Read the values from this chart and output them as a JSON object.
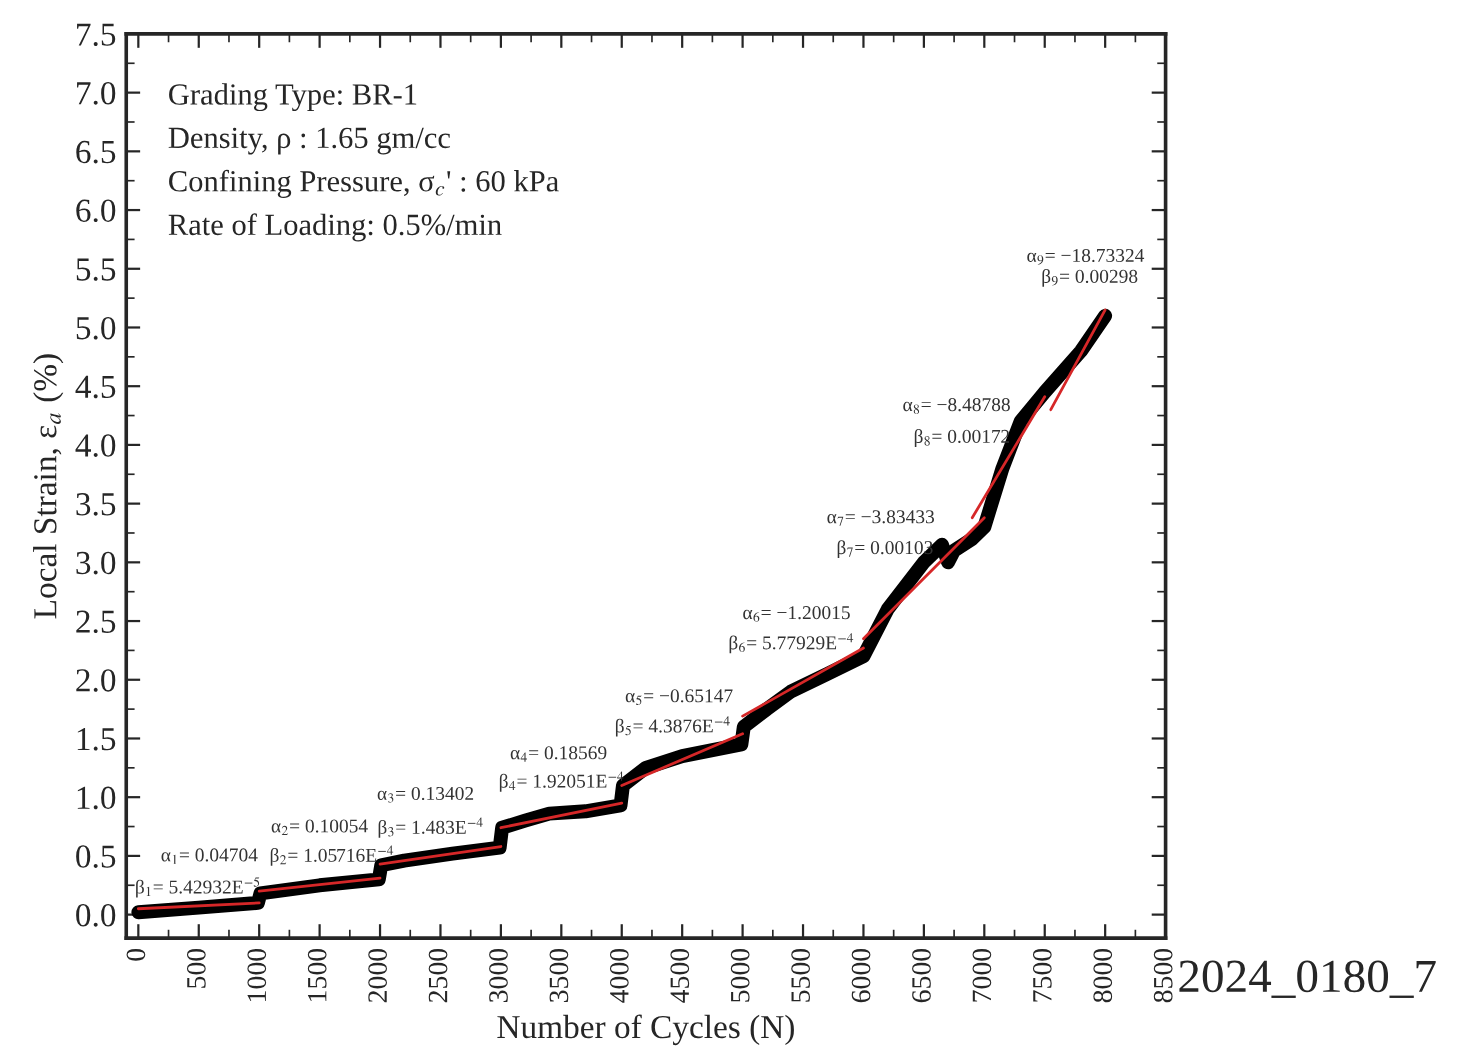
{
  "chart_data": {
    "type": "line",
    "xlabel": "Number of Cycles (N)",
    "ylabel": "Local Strain, ε$_{a}$ (%)",
    "xlim": [
      -100,
      8500
    ],
    "ylim": [
      -0.2,
      7.5
    ],
    "xticks": [
      0,
      500,
      1000,
      1500,
      2000,
      2500,
      3000,
      3500,
      4000,
      4500,
      5000,
      5500,
      6000,
      6500,
      7000,
      7500,
      8000,
      8500
    ],
    "yticks": [
      {
        "value": 0,
        "label": "0.0"
      },
      {
        "value": 0.5,
        "label": "0.5"
      },
      {
        "value": 1,
        "label": "1.0"
      },
      {
        "value": 1.5,
        "label": "1.5"
      },
      {
        "value": 2,
        "label": "2.0"
      },
      {
        "value": 2.5,
        "label": "2.5"
      },
      {
        "value": 3,
        "label": "3.0"
      },
      {
        "value": 3.5,
        "label": "3.5"
      },
      {
        "value": 4,
        "label": "4.0"
      },
      {
        "value": 4.5,
        "label": "4.5"
      },
      {
        "value": 5,
        "label": "5.0"
      },
      {
        "value": 5.5,
        "label": "5.5"
      },
      {
        "value": 6,
        "label": "6.0"
      },
      {
        "value": 6.5,
        "label": "6.5"
      },
      {
        "value": 7,
        "label": "7.0"
      },
      {
        "value": 7.5,
        "label": "7.5"
      }
    ],
    "grid": false,
    "marker": "none",
    "line_style": "solid",
    "series": [
      {
        "color": "#000000",
        "x": [
          0,
          500,
          990,
          1010,
          1500,
          1990,
          2010,
          2200,
          2600,
          2990,
          3010,
          3200,
          3400,
          3700,
          3990,
          4010,
          4200,
          4500,
          4990,
          5010,
          5200,
          5400,
          5700,
          6000,
          6200,
          6500,
          6650,
          6700,
          6750,
          6900,
          7000,
          7150,
          7300,
          7500,
          7800,
          8000
        ],
        "values": [
          0.02,
          0.06,
          0.1,
          0.18,
          0.25,
          0.3,
          0.42,
          0.46,
          0.52,
          0.57,
          0.74,
          0.8,
          0.86,
          0.88,
          0.93,
          1.1,
          1.25,
          1.35,
          1.45,
          1.6,
          1.75,
          1.9,
          2.05,
          2.2,
          2.6,
          3.0,
          3.15,
          3.0,
          3.1,
          3.2,
          3.3,
          3.8,
          4.2,
          4.45,
          4.8,
          5.1
        ]
      },
      {
        "color": "#d62728",
        "x": [
          0,
          1000
        ],
        "values": [
          0.05,
          0.1
        ]
      },
      {
        "color": "#d62728",
        "x": [
          1000,
          2000
        ],
        "values": [
          0.2,
          0.31
        ]
      },
      {
        "color": "#d62728",
        "x": [
          2000,
          3000
        ],
        "values": [
          0.43,
          0.58
        ]
      },
      {
        "color": "#d62728",
        "x": [
          3000,
          4000
        ],
        "values": [
          0.74,
          0.95
        ]
      },
      {
        "color": "#d62728",
        "x": [
          4000,
          5000
        ],
        "values": [
          1.1,
          1.54
        ]
      },
      {
        "color": "#d62728",
        "x": [
          5000,
          6000
        ],
        "values": [
          1.69,
          2.27
        ]
      },
      {
        "color": "#d62728",
        "x": [
          6000,
          7000
        ],
        "values": [
          2.35,
          3.38
        ]
      },
      {
        "color": "#d62728",
        "x": [
          6900,
          7500
        ],
        "values": [
          3.38,
          4.41
        ]
      },
      {
        "color": "#d62728",
        "x": [
          7550,
          8000
        ],
        "values": [
          4.3,
          5.15
        ]
      }
    ],
    "annotations": [
      "Grading Type: BR-1",
      "Density, ρ : 1.65 gm/cc",
      "Confining Pressure, σ$_{c}$' : 60 kPa",
      "Rate of Loading: 0.5%/min",
      "α$_{1}$= 0.04704",
      "β$_{1}$= 5.42932E$^{−5}$",
      "α$_{2}$= 0.10054",
      "β$_{2}$= 1.05716E$^{−4}$",
      "α$_{3}$= 0.13402",
      "β$_{3}$= 1.483E$^{−4}$",
      "α$_{4}$= 0.18569",
      "β$_{4}$= 1.92051E$^{−4}$",
      "α$_{5}$= −0.65147",
      "β$_{5}$= 4.3876E$^{−4}$",
      "α$_{6}$= −1.20015",
      "β$_{6}$= 5.77929E$^{−4}$",
      "α$_{7}$= −3.83433",
      "β$_{7}$= 0.00103",
      "α$_{8}$= −8.48788",
      "β$_{8}$= 0.00172",
      "α$_{9}$= −18.73324",
      "β$_{9}$= 0.00298",
      "2024_0180_7"
    ]
  }
}
